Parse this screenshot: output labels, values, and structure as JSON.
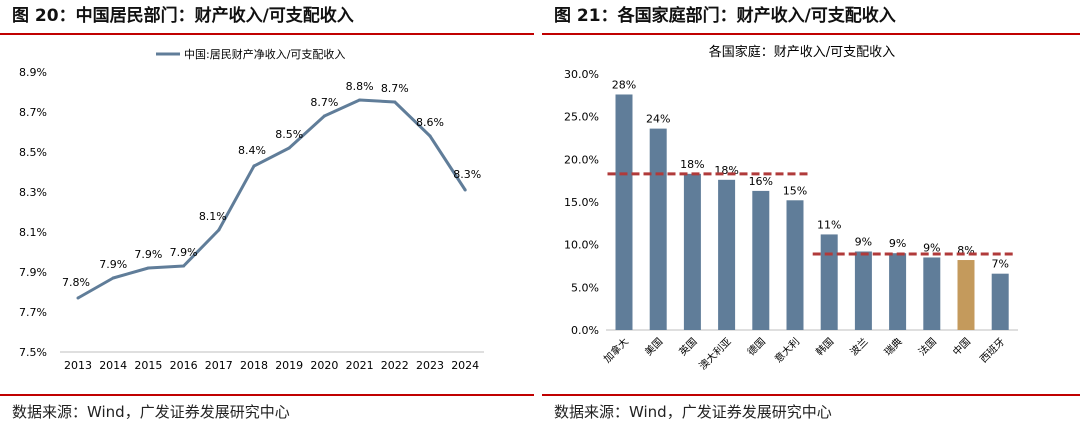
{
  "left": {
    "figure_title": "图 20：中国居民部门：财产收入/可支配收入",
    "source": "数据来源：Wind，广发证券发展研究中心"
  },
  "right": {
    "figure_title": "图 21：各国家庭部门：财产收入/可支配收入",
    "source": "数据来源：Wind，广发证券发展研究中心"
  },
  "colors": {
    "rule": "#c00000",
    "line": "#607d99",
    "bar": "#607d99",
    "bar_highlight": "#c49a5c",
    "dashed": "#b03a3a"
  },
  "chart_data": [
    {
      "type": "line",
      "title": "",
      "legend": "中国:居民财产净收入/可支配收入",
      "legend_position": "top",
      "x": [
        "2013",
        "2014",
        "2015",
        "2016",
        "2017",
        "2018",
        "2019",
        "2020",
        "2021",
        "2022",
        "2023",
        "2024"
      ],
      "series": [
        {
          "name": "中国:居民财产净收入/可支配收入",
          "values": [
            7.77,
            7.87,
            7.92,
            7.93,
            8.11,
            8.43,
            8.52,
            8.68,
            8.76,
            8.75,
            8.58,
            8.31
          ],
          "labels": [
            "7.8%",
            "7.9%",
            "7.9%",
            "7.9%",
            "8.1%",
            "8.4%",
            "8.5%",
            "8.7%",
            "8.8%",
            "8.7%",
            "8.6%",
            "8.3%"
          ]
        }
      ],
      "ylim": [
        7.5,
        8.9
      ],
      "yticks": [
        "7.5%",
        "7.7%",
        "7.9%",
        "8.1%",
        "8.3%",
        "8.5%",
        "8.7%",
        "8.9%"
      ],
      "grid": false
    },
    {
      "type": "bar",
      "title": "各国家庭：财产收入/可支配收入",
      "categories": [
        "加拿大",
        "美国",
        "英国",
        "澳大利亚",
        "德国",
        "意大利",
        "韩国",
        "波兰",
        "瑞典",
        "法国",
        "中国",
        "西班牙"
      ],
      "values": [
        27.6,
        23.6,
        18.3,
        17.6,
        16.3,
        15.2,
        11.2,
        9.2,
        9.0,
        8.5,
        8.2,
        6.6
      ],
      "labels": [
        "28%",
        "24%",
        "18%",
        "18%",
        "16%",
        "15%",
        "11%",
        "9%",
        "9%",
        "9%",
        "8%",
        "7%"
      ],
      "highlight": "中国",
      "reference_lines": [
        {
          "value": 18.3,
          "from": "加拿大",
          "to": "意大利"
        },
        {
          "value": 8.9,
          "from": "韩国",
          "to": "西班牙"
        }
      ],
      "ylim": [
        0,
        30
      ],
      "yticks": [
        "0.0%",
        "5.0%",
        "10.0%",
        "15.0%",
        "20.0%",
        "25.0%",
        "30.0%"
      ],
      "grid": false
    }
  ]
}
